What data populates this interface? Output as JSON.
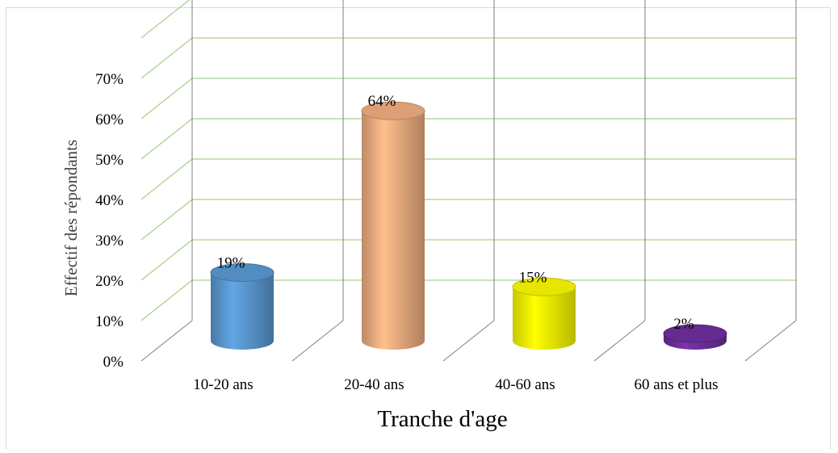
{
  "chart_data": {
    "type": "bar",
    "style": "3d-cylinder",
    "categories": [
      "10-20 ans",
      "20-40 ans",
      "40-60 ans",
      "60 ans et plus"
    ],
    "values": [
      19,
      64,
      15,
      2
    ],
    "data_labels": [
      "19%",
      "64%",
      "15%",
      "2%"
    ],
    "xlabel": "Tranche d'age",
    "ylabel": "Effectif des répondants",
    "ylim": [
      0,
      70
    ],
    "yticks": [
      "0%",
      "10%",
      "20%",
      "30%",
      "40%",
      "50%",
      "60%",
      "70%"
    ],
    "grid": true,
    "legend": "none",
    "colors": {
      "bars": [
        "#5b9bd5",
        "#f4b183",
        "#ffff00",
        "#7030a0"
      ],
      "gridlines": "#a9d18e",
      "walls": "#7f7f7f"
    }
  }
}
